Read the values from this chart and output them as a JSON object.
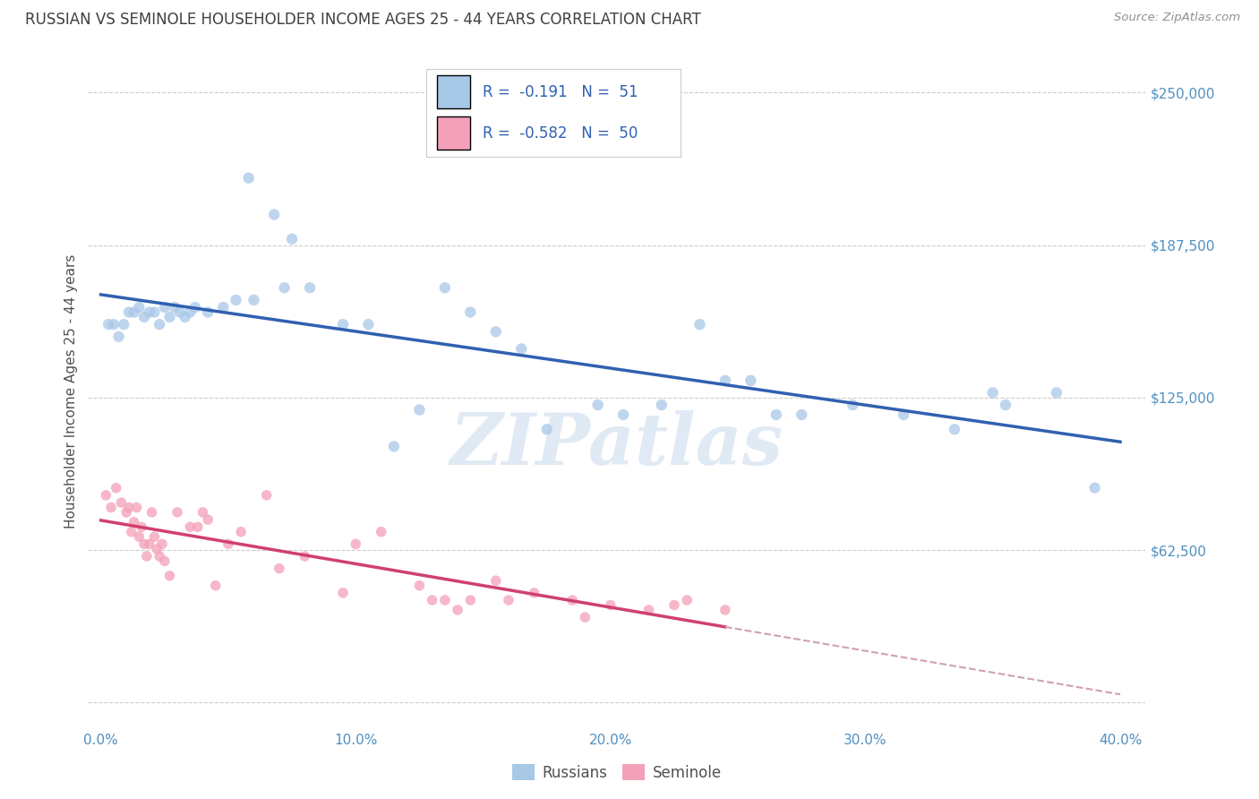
{
  "title": "RUSSIAN VS SEMINOLE HOUSEHOLDER INCOME AGES 25 - 44 YEARS CORRELATION CHART",
  "source": "Source: ZipAtlas.com",
  "ylabel": "Householder Income Ages 25 - 44 years",
  "xlim": [
    -0.5,
    41.0
  ],
  "ylim": [
    -10000,
    265000
  ],
  "yticks": [
    0,
    62500,
    125000,
    187500,
    250000
  ],
  "ytick_labels": [
    "",
    "$62,500",
    "$125,000",
    "$187,500",
    "$250,000"
  ],
  "xticks": [
    0.0,
    5.0,
    10.0,
    15.0,
    20.0,
    25.0,
    30.0,
    35.0,
    40.0
  ],
  "xtick_labels": [
    "0.0%",
    "",
    "10.0%",
    "",
    "20.0%",
    "",
    "30.0%",
    "",
    "40.0%"
  ],
  "russian_R": -0.191,
  "russian_N": 51,
  "seminole_R": -0.582,
  "seminole_N": 50,
  "russian_color": "#a8c8e8",
  "seminole_color": "#f4a0b8",
  "russian_line_color": "#3060b0",
  "seminole_line_color": "#d04070",
  "seminole_line_dashed_color": "#d0a0b0",
  "background_color": "#ffffff",
  "grid_color": "#cccccc",
  "title_color": "#404040",
  "axis_label_color": "#505050",
  "tick_label_color": "#5090c0",
  "legend_R_color": "#3060b0",
  "russians_x": [
    0.3,
    0.5,
    0.7,
    0.9,
    1.1,
    1.3,
    1.5,
    1.7,
    1.9,
    2.1,
    2.3,
    2.5,
    2.7,
    2.9,
    3.1,
    3.3,
    3.5,
    3.7,
    4.2,
    4.8,
    5.3,
    5.8,
    6.8,
    7.5,
    8.2,
    9.5,
    10.5,
    11.5,
    12.5,
    13.5,
    14.5,
    15.5,
    16.5,
    17.5,
    19.5,
    22.0,
    23.5,
    25.5,
    27.5,
    29.5,
    31.5,
    33.5,
    35.5,
    37.5,
    39.0,
    6.0,
    7.2,
    20.5,
    24.5,
    26.5,
    35.0
  ],
  "russians_y": [
    155000,
    155000,
    150000,
    155000,
    160000,
    160000,
    162000,
    158000,
    160000,
    160000,
    155000,
    162000,
    158000,
    162000,
    160000,
    158000,
    160000,
    162000,
    160000,
    162000,
    165000,
    215000,
    200000,
    190000,
    170000,
    155000,
    155000,
    105000,
    120000,
    170000,
    160000,
    152000,
    145000,
    112000,
    122000,
    122000,
    155000,
    132000,
    118000,
    122000,
    118000,
    112000,
    122000,
    127000,
    88000,
    165000,
    170000,
    118000,
    132000,
    118000,
    127000
  ],
  "seminole_x": [
    0.2,
    0.4,
    0.6,
    0.8,
    1.0,
    1.1,
    1.2,
    1.3,
    1.4,
    1.5,
    1.6,
    1.7,
    1.8,
    1.9,
    2.0,
    2.1,
    2.2,
    2.3,
    2.4,
    2.5,
    2.7,
    3.0,
    3.5,
    4.0,
    4.5,
    5.5,
    6.5,
    8.0,
    9.5,
    11.0,
    12.5,
    13.5,
    14.5,
    15.5,
    17.0,
    18.5,
    20.0,
    21.5,
    23.0,
    24.5,
    3.8,
    5.0,
    7.0,
    10.0,
    13.0,
    16.0,
    19.0,
    22.5,
    4.2,
    14.0
  ],
  "seminole_y": [
    85000,
    80000,
    88000,
    82000,
    78000,
    80000,
    70000,
    74000,
    80000,
    68000,
    72000,
    65000,
    60000,
    65000,
    78000,
    68000,
    63000,
    60000,
    65000,
    58000,
    52000,
    78000,
    72000,
    78000,
    48000,
    70000,
    85000,
    60000,
    45000,
    70000,
    48000,
    42000,
    42000,
    50000,
    45000,
    42000,
    40000,
    38000,
    42000,
    38000,
    72000,
    65000,
    55000,
    65000,
    42000,
    42000,
    35000,
    40000,
    75000,
    38000
  ],
  "watermark": "ZIPatlas",
  "russian_size": 80,
  "seminole_size": 70
}
